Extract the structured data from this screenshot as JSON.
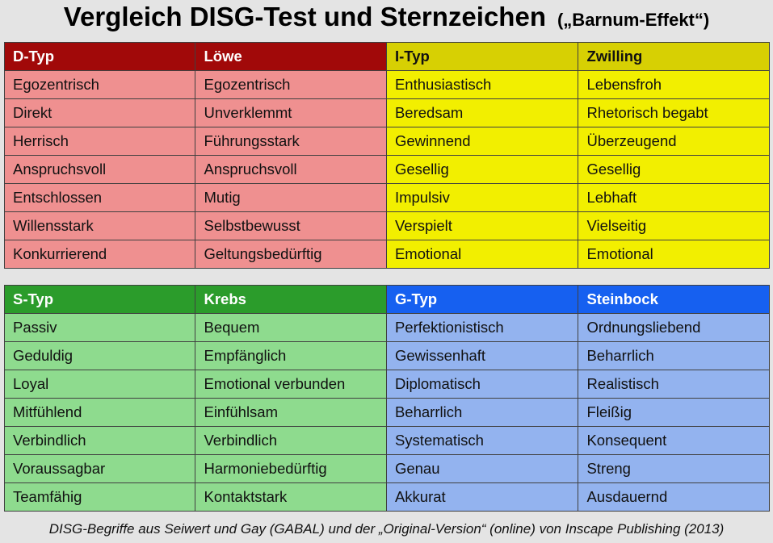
{
  "title": {
    "main": "Vergleich DISG-Test und Sternzeichen",
    "sub": "(„Barnum-Effekt“)"
  },
  "top_table": {
    "headers": [
      "D-Typ",
      "Löwe",
      "I-Typ",
      "Zwilling"
    ],
    "rows": [
      [
        "Egozentrisch",
        "Egozentrisch",
        "Enthusiastisch",
        "Lebensfroh"
      ],
      [
        "Direkt",
        "Unverklemmt",
        "Beredsam",
        "Rhetorisch begabt"
      ],
      [
        "Herrisch",
        "Führungsstark",
        "Gewinnend",
        "Überzeugend"
      ],
      [
        "Anspruchsvoll",
        "Anspruchsvoll",
        "Gesellig",
        "Gesellig"
      ],
      [
        "Entschlossen",
        "Mutig",
        "Impulsiv",
        "Lebhaft"
      ],
      [
        "Willensstark",
        "Selbstbewusst",
        "Verspielt",
        "Vielseitig"
      ],
      [
        "Konkurrierend",
        "Geltungsbedürftig",
        "Emotional",
        "Emotional"
      ]
    ]
  },
  "bottom_table": {
    "headers": [
      "S-Typ",
      "Krebs",
      "G-Typ",
      "Steinbock"
    ],
    "rows": [
      [
        "Passiv",
        "Bequem",
        "Perfektionistisch",
        "Ordnungsliebend"
      ],
      [
        "Geduldig",
        "Empfänglich",
        "Gewissenhaft",
        "Beharrlich"
      ],
      [
        "Loyal",
        "Emotional verbunden",
        "Diplomatisch",
        "Realistisch"
      ],
      [
        "Mitfühlend",
        "Einfühlsam",
        "Beharrlich",
        "Fleißig"
      ],
      [
        "Verbindlich",
        "Verbindlich",
        "Systematisch",
        "Konsequent"
      ],
      [
        "Voraussagbar",
        "Harmoniebedürftig",
        "Genau",
        "Streng"
      ],
      [
        "Teamfähig",
        "Kontaktstark",
        "Akkurat",
        "Ausdauernd"
      ]
    ]
  },
  "footer": "DISG-Begriffe aus Seiwert und Gay (GABAL) und der „Original-Version“ (online) von Inscape Publishing (2013)",
  "colors": {
    "d_header": "#a10909",
    "d_cells": "#ef9090",
    "i_header": "#d7d003",
    "i_cells": "#f2ef00",
    "s_header": "#2b9c2b",
    "s_cells": "#8edb8e",
    "g_header": "#1660f0",
    "g_cells": "#93b3ef"
  }
}
